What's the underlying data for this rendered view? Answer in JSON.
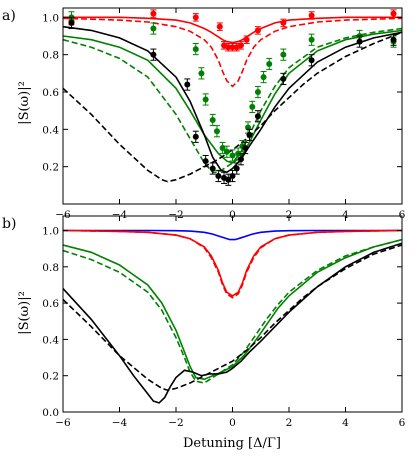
{
  "figure": {
    "xlabel": "Detuning [Δ/Γ]",
    "ylabel": "|S(ω)|²"
  },
  "chart_data": [
    {
      "panel_label": "a)",
      "type": "line",
      "xlim": [
        -6,
        6
      ],
      "ylim": [
        0.0,
        1.05
      ],
      "xticks": [
        -6,
        -4,
        -2,
        0,
        2,
        4,
        6
      ],
      "yticks": [
        0.2,
        0.4,
        0.6,
        0.8,
        1.0
      ],
      "yticklabels": [
        "0.2",
        "0.4",
        "0.6",
        "0.8",
        "1.0"
      ],
      "grid": false,
      "series": [
        {
          "color": "#ff0000",
          "style": "solid",
          "x": [
            -6,
            -5,
            -4,
            -3,
            -2,
            -1.5,
            -1,
            -0.75,
            -0.5,
            -0.35,
            -0.2,
            0,
            0.2,
            0.35,
            0.5,
            0.75,
            1,
            1.5,
            2,
            3,
            4,
            5,
            6
          ],
          "y": [
            1.0,
            1.0,
            1.0,
            0.995,
            0.985,
            0.97,
            0.94,
            0.92,
            0.895,
            0.88,
            0.87,
            0.865,
            0.87,
            0.88,
            0.895,
            0.92,
            0.94,
            0.97,
            0.985,
            0.995,
            1.0,
            1.0,
            1.0
          ]
        },
        {
          "color": "#ff0000",
          "style": "dashed",
          "x": [
            -6,
            -5,
            -4,
            -3,
            -2,
            -1.5,
            -1,
            -0.75,
            -0.5,
            -0.35,
            -0.2,
            0,
            0.2,
            0.35,
            0.5,
            0.75,
            1,
            1.5,
            2,
            3,
            4,
            5,
            6
          ],
          "y": [
            0.995,
            0.99,
            0.985,
            0.975,
            0.95,
            0.925,
            0.88,
            0.84,
            0.77,
            0.71,
            0.66,
            0.63,
            0.66,
            0.71,
            0.77,
            0.84,
            0.88,
            0.925,
            0.95,
            0.975,
            0.985,
            0.99,
            0.995
          ]
        },
        {
          "color": "#008000",
          "style": "solid",
          "x": [
            -6,
            -5,
            -4,
            -3,
            -2,
            -1.5,
            -1,
            -0.5,
            -0.2,
            0,
            0.3,
            0.6,
            1,
            1.5,
            2,
            3,
            4,
            5,
            6
          ],
          "y": [
            0.9,
            0.88,
            0.84,
            0.77,
            0.62,
            0.5,
            0.37,
            0.27,
            0.23,
            0.22,
            0.25,
            0.33,
            0.45,
            0.59,
            0.7,
            0.82,
            0.88,
            0.91,
            0.93
          ]
        },
        {
          "color": "#008000",
          "style": "dashed",
          "x": [
            -6,
            -5,
            -4,
            -3,
            -2,
            -1.5,
            -1,
            -0.7,
            -0.5,
            -0.2,
            0,
            0.3,
            0.6,
            1,
            1.5,
            2,
            3,
            4,
            5,
            6
          ],
          "y": [
            0.88,
            0.84,
            0.78,
            0.68,
            0.48,
            0.35,
            0.22,
            0.17,
            0.17,
            0.2,
            0.22,
            0.28,
            0.37,
            0.5,
            0.63,
            0.73,
            0.84,
            0.89,
            0.92,
            0.94
          ]
        },
        {
          "color": "#000000",
          "style": "solid",
          "x": [
            -6,
            -5,
            -4,
            -3,
            -2,
            -1.5,
            -1,
            -0.7,
            -0.4,
            -0.2,
            0,
            0.3,
            0.6,
            1,
            1.5,
            2,
            3,
            4,
            5,
            6
          ],
          "y": [
            0.95,
            0.93,
            0.89,
            0.82,
            0.68,
            0.55,
            0.37,
            0.25,
            0.18,
            0.17,
            0.19,
            0.24,
            0.31,
            0.4,
            0.52,
            0.62,
            0.76,
            0.84,
            0.89,
            0.92
          ]
        },
        {
          "color": "#000000",
          "style": "dashed",
          "x": [
            -6,
            -5,
            -4,
            -3,
            -2.5,
            -2.3,
            -2,
            -1.5,
            -1,
            -0.5,
            0,
            0.5,
            1,
            1.5,
            2,
            2.5,
            3,
            4,
            5,
            6
          ],
          "y": [
            0.62,
            0.48,
            0.32,
            0.18,
            0.13,
            0.12,
            0.13,
            0.16,
            0.2,
            0.24,
            0.29,
            0.35,
            0.42,
            0.5,
            0.57,
            0.64,
            0.7,
            0.79,
            0.86,
            0.92
          ]
        }
      ],
      "markers": [
        {
          "color": "#ff0000",
          "x": [
            -5.7,
            -2.8,
            -1.3,
            -0.45,
            -0.3,
            -0.15,
            0,
            0.15,
            0.3,
            0.5,
            0.9,
            1.8,
            2.8,
            5.7
          ],
          "y": [
            0.98,
            1.02,
            1.0,
            0.95,
            0.85,
            0.84,
            0.84,
            0.84,
            0.85,
            0.88,
            0.93,
            0.97,
            1.01,
            1.02
          ],
          "yerr": [
            0.02,
            0.02,
            0.02,
            0.02,
            0.02,
            0.02,
            0.02,
            0.02,
            0.02,
            0.02,
            0.02,
            0.02,
            0.02,
            0.02
          ]
        },
        {
          "color": "#008000",
          "x": [
            -5.7,
            -2.8,
            -1.3,
            -1.1,
            -0.95,
            -0.7,
            -0.55,
            -0.35,
            -0.2,
            0,
            0.2,
            0.35,
            0.55,
            0.7,
            0.9,
            1.1,
            1.3,
            1.8,
            2.8,
            4.5,
            5.7
          ],
          "y": [
            1.0,
            0.94,
            0.83,
            0.7,
            0.56,
            0.45,
            0.39,
            0.3,
            0.28,
            0.26,
            0.27,
            0.31,
            0.41,
            0.52,
            0.6,
            0.68,
            0.75,
            0.8,
            0.88,
            0.9,
            0.87
          ],
          "yerr": [
            0.03,
            0.03,
            0.03,
            0.03,
            0.03,
            0.03,
            0.03,
            0.03,
            0.03,
            0.03,
            0.03,
            0.03,
            0.03,
            0.03,
            0.03,
            0.03,
            0.03,
            0.03,
            0.03,
            0.03,
            0.03
          ]
        },
        {
          "color": "#000000",
          "x": [
            -5.7,
            -2.8,
            -1.6,
            -1.3,
            -0.95,
            -0.7,
            -0.5,
            -0.3,
            -0.15,
            0,
            0.15,
            0.3,
            0.45,
            0.6,
            0.9,
            1.8,
            2.8,
            4.5,
            5.7
          ],
          "y": [
            0.97,
            0.8,
            0.64,
            0.36,
            0.23,
            0.19,
            0.15,
            0.14,
            0.13,
            0.15,
            0.19,
            0.24,
            0.3,
            0.37,
            0.47,
            0.67,
            0.77,
            0.87,
            0.88
          ],
          "yerr": [
            0.03,
            0.03,
            0.03,
            0.03,
            0.03,
            0.03,
            0.03,
            0.03,
            0.03,
            0.03,
            0.03,
            0.03,
            0.03,
            0.03,
            0.03,
            0.03,
            0.03,
            0.03,
            0.03
          ]
        }
      ]
    },
    {
      "panel_label": "b)",
      "type": "line",
      "xlim": [
        -6,
        6
      ],
      "ylim": [
        0.0,
        1.08
      ],
      "xticks": [
        -6,
        -4,
        -2,
        0,
        2,
        4,
        6
      ],
      "yticks": [
        0.0,
        0.2,
        0.4,
        0.6,
        0.8,
        1.0
      ],
      "yticklabels": [
        "0.0",
        "0.2",
        "0.4",
        "0.6",
        "0.8",
        "1.0"
      ],
      "grid": false,
      "series": [
        {
          "color": "#0000ff",
          "style": "solid",
          "x": [
            -6,
            -3,
            -2,
            -1.5,
            -1,
            -0.7,
            -0.5,
            -0.3,
            -0.1,
            0,
            0.1,
            0.3,
            0.5,
            0.7,
            1,
            1.5,
            2,
            3,
            6
          ],
          "y": [
            1.0,
            1.0,
            0.999,
            0.997,
            0.99,
            0.98,
            0.97,
            0.96,
            0.95,
            0.95,
            0.95,
            0.96,
            0.97,
            0.98,
            0.99,
            0.997,
            0.999,
            1.0,
            1.0
          ]
        },
        {
          "color": "#ff0000",
          "style": "solid",
          "x": [
            -6,
            -4,
            -3,
            -2,
            -1.5,
            -1,
            -0.75,
            -0.5,
            -0.35,
            -0.2,
            0,
            0.2,
            0.35,
            0.5,
            0.75,
            1,
            1.5,
            2,
            3,
            4,
            6
          ],
          "y": [
            1.0,
            0.995,
            0.99,
            0.975,
            0.955,
            0.91,
            0.86,
            0.78,
            0.71,
            0.66,
            0.64,
            0.66,
            0.71,
            0.78,
            0.86,
            0.91,
            0.955,
            0.975,
            0.99,
            0.995,
            1.0
          ]
        },
        {
          "color": "#ff0000",
          "style": "dashed",
          "x": [
            -6,
            -4,
            -3,
            -2,
            -1.5,
            -1,
            -0.75,
            -0.5,
            -0.35,
            -0.2,
            0,
            0.2,
            0.35,
            0.5,
            0.75,
            1,
            1.5,
            2,
            3,
            4,
            6
          ],
          "y": [
            1.0,
            0.995,
            0.99,
            0.975,
            0.955,
            0.905,
            0.85,
            0.77,
            0.7,
            0.65,
            0.63,
            0.65,
            0.7,
            0.77,
            0.85,
            0.905,
            0.955,
            0.975,
            0.99,
            0.995,
            1.0
          ]
        },
        {
          "color": "#008000",
          "style": "solid",
          "x": [
            -6,
            -5,
            -4,
            -3,
            -2.5,
            -2,
            -1.7,
            -1.5,
            -1.3,
            -1,
            -0.7,
            -0.4,
            0,
            0.4,
            0.8,
            1.2,
            1.6,
            2,
            3,
            4,
            5,
            6
          ],
          "y": [
            0.92,
            0.88,
            0.81,
            0.7,
            0.6,
            0.45,
            0.33,
            0.25,
            0.19,
            0.18,
            0.2,
            0.22,
            0.25,
            0.31,
            0.39,
            0.48,
            0.57,
            0.64,
            0.77,
            0.85,
            0.91,
            0.95
          ]
        },
        {
          "color": "#008000",
          "style": "dashed",
          "x": [
            -6,
            -5,
            -4,
            -3,
            -2.5,
            -2,
            -1.7,
            -1.5,
            -1.3,
            -1,
            -0.7,
            -0.4,
            0,
            0.4,
            0.8,
            1.2,
            1.6,
            2,
            3,
            4,
            5,
            6
          ],
          "y": [
            0.89,
            0.84,
            0.77,
            0.66,
            0.56,
            0.41,
            0.3,
            0.22,
            0.17,
            0.16,
            0.19,
            0.22,
            0.26,
            0.33,
            0.42,
            0.51,
            0.59,
            0.66,
            0.78,
            0.86,
            0.91,
            0.95
          ]
        },
        {
          "color": "#000000",
          "style": "solid",
          "x": [
            -6,
            -5,
            -4,
            -3.5,
            -3,
            -2.8,
            -2.6,
            -2.4,
            -2.2,
            -2,
            -1.7,
            -1.4,
            -1.1,
            -0.8,
            -0.5,
            -0.2,
            0,
            0.3,
            0.6,
            1,
            1.5,
            2,
            2.5,
            3,
            4,
            5,
            6
          ],
          "y": [
            0.68,
            0.51,
            0.31,
            0.2,
            0.1,
            0.06,
            0.05,
            0.08,
            0.14,
            0.19,
            0.23,
            0.22,
            0.2,
            0.21,
            0.21,
            0.22,
            0.24,
            0.28,
            0.33,
            0.39,
            0.47,
            0.55,
            0.62,
            0.69,
            0.8,
            0.88,
            0.93
          ]
        },
        {
          "color": "#000000",
          "style": "dashed",
          "x": [
            -6,
            -5,
            -4,
            -3,
            -2.5,
            -2.3,
            -2,
            -1.5,
            -1,
            -0.5,
            0,
            0.5,
            1,
            1.5,
            2,
            2.5,
            3,
            4,
            5,
            6
          ],
          "y": [
            0.62,
            0.47,
            0.31,
            0.18,
            0.13,
            0.12,
            0.13,
            0.16,
            0.2,
            0.24,
            0.28,
            0.34,
            0.41,
            0.49,
            0.56,
            0.63,
            0.69,
            0.79,
            0.87,
            0.92
          ]
        }
      ],
      "markers": []
    }
  ]
}
